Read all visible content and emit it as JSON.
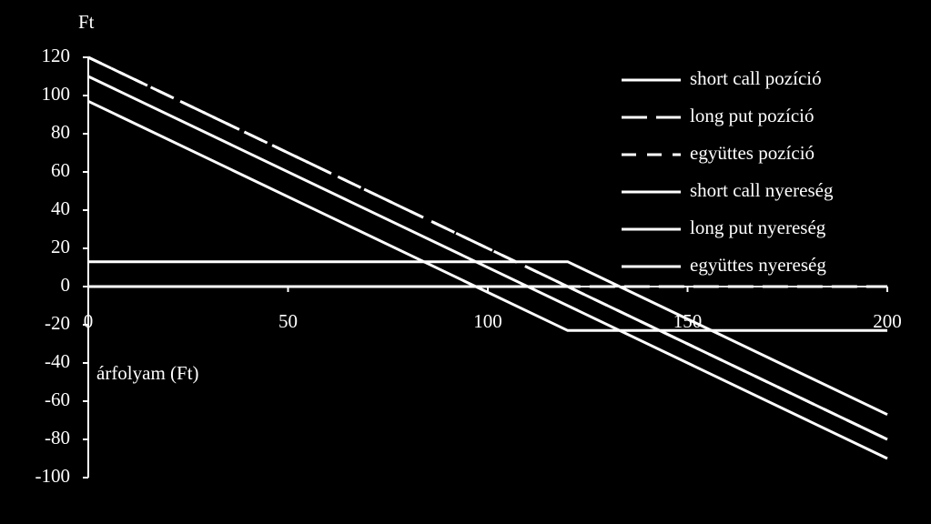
{
  "chart_data": {
    "type": "line",
    "y_label": "Ft",
    "x_label": "árfolyam (Ft)",
    "x": [
      0,
      120,
      200
    ],
    "xlim": [
      0,
      200
    ],
    "xticks": [
      0,
      50,
      100,
      150,
      200
    ],
    "ylim": [
      -100,
      120
    ],
    "yticks": [
      -100,
      -80,
      -60,
      -40,
      -20,
      0,
      20,
      40,
      60,
      80,
      100,
      120
    ],
    "legend": "upper right",
    "series": [
      {
        "name": "short call pozíció",
        "color": "#ffffff",
        "dash": "solid",
        "values": [
          0,
          0,
          -80
        ]
      },
      {
        "name": "long put pozíció",
        "color": "#ffffff",
        "dash": "long",
        "values": [
          120,
          0,
          0
        ]
      },
      {
        "name": "együttes pozíció",
        "color": "#ffffff",
        "dash": "short",
        "values": [
          120,
          0,
          -80
        ]
      },
      {
        "name": "short call nyereség",
        "color": "#ffffff",
        "dash": "solid",
        "values": [
          13,
          13,
          -67
        ]
      },
      {
        "name": "long put nyereség",
        "color": "#ffffff",
        "dash": "solid",
        "values": [
          97,
          -23,
          -23
        ]
      },
      {
        "name": "együttes nyereség",
        "color": "#ffffff",
        "dash": "solid",
        "values": [
          110,
          -10,
          -90
        ]
      }
    ]
  }
}
